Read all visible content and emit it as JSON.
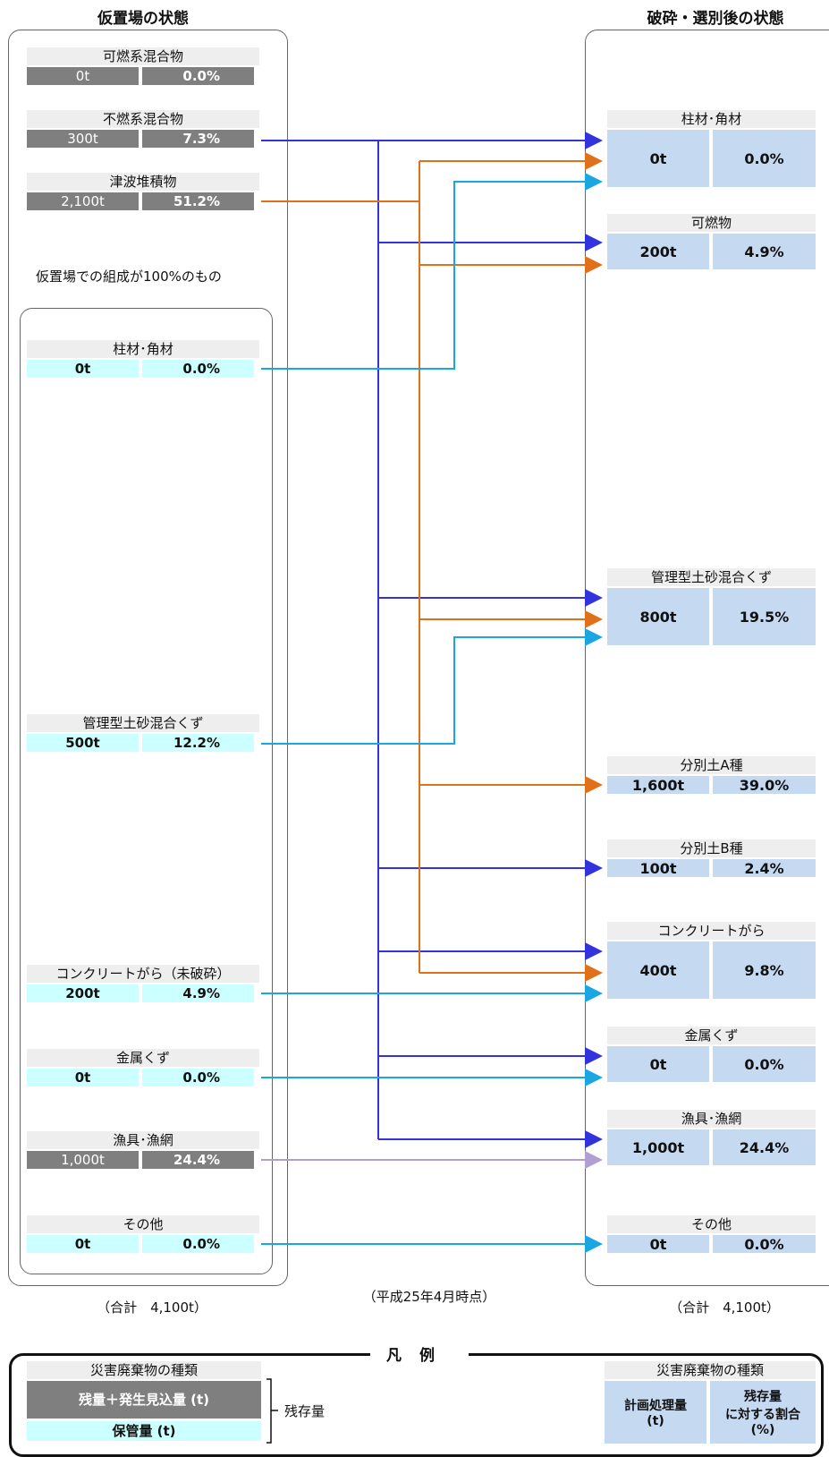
{
  "headings": {
    "left": "仮置場の状態",
    "right": "破砕・選別後の状態"
  },
  "left_items": [
    {
      "label": "可燃系混合物",
      "amount": "0t",
      "pct": "0.0%",
      "style": "dark"
    },
    {
      "label": "不燃系混合物",
      "amount": "300t",
      "pct": "7.3%",
      "style": "dark"
    },
    {
      "label": "津波堆積物",
      "amount": "2,100t",
      "pct": "51.2%",
      "style": "dark"
    }
  ],
  "inner_note": "仮置場での組成が100%のもの",
  "inner_items": [
    {
      "label": "柱材･角材",
      "amount": "0t",
      "pct": "0.0%",
      "style": "cyan"
    },
    {
      "label": "管理型土砂混合くず",
      "amount": "500t",
      "pct": "12.2%",
      "style": "cyan"
    },
    {
      "label": "コンクリートがら（未破砕）",
      "amount": "200t",
      "pct": "4.9%",
      "style": "cyan"
    },
    {
      "label": "金属くず",
      "amount": "0t",
      "pct": "0.0%",
      "style": "cyan"
    },
    {
      "label": "漁具･漁網",
      "amount": "1,000t",
      "pct": "24.4%",
      "style": "dark"
    },
    {
      "label": "その他",
      "amount": "0t",
      "pct": "0.0%",
      "style": "cyan"
    }
  ],
  "right_items": [
    {
      "label": "柱材･角材",
      "amount": "0t",
      "pct": "0.0%"
    },
    {
      "label": "可燃物",
      "amount": "200t",
      "pct": "4.9%"
    },
    {
      "label": "管理型土砂混合くず",
      "amount": "800t",
      "pct": "19.5%"
    },
    {
      "label": "分別土A種",
      "amount": "1,600t",
      "pct": "39.0%"
    },
    {
      "label": "分別土B種",
      "amount": "100t",
      "pct": "2.4%"
    },
    {
      "label": "コンクリートがら",
      "amount": "400t",
      "pct": "9.8%"
    },
    {
      "label": "金属くず",
      "amount": "0t",
      "pct": "0.0%"
    },
    {
      "label": "漁具･漁網",
      "amount": "1,000t",
      "pct": "24.4%"
    },
    {
      "label": "その他",
      "amount": "0t",
      "pct": "0.0%"
    }
  ],
  "totals": {
    "left": "（合計　4,100t）",
    "center": "（平成25年4月時点）",
    "right": "（合計　4,100t）"
  },
  "legend": {
    "title": "凡例",
    "left_type": "災害廃棄物の種類",
    "left_row1": "残量＋発生見込量 (t)",
    "left_row2": "保管量 (t)",
    "bracket_label": "残存量",
    "right_type": "災害廃棄物の種類",
    "right_cell1": "計画処理量\n(t)",
    "right_cell2": "残存量\nに対する割合\n(%)"
  },
  "colors": {
    "blue": "#3333dd",
    "orange": "#e0701a",
    "cyan": "#1aa6e0",
    "lavender": "#b09fd0"
  }
}
